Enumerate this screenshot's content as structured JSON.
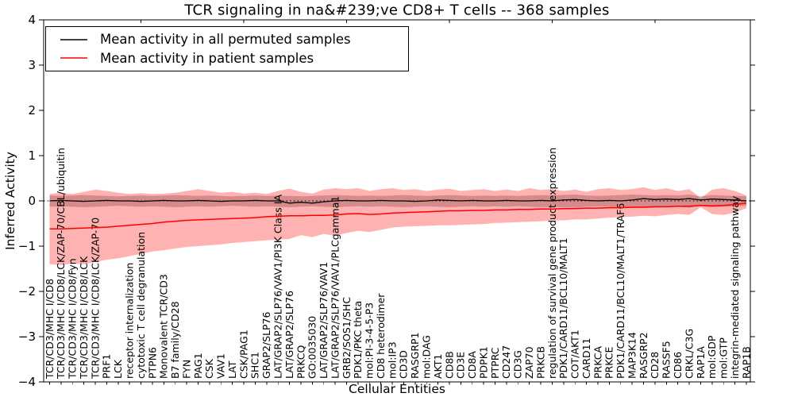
{
  "title": "TCR signaling in na&#239;ve CD8+ T cells -- 368 samples",
  "legend": {
    "items": [
      {
        "label": "Mean activity in all permuted samples",
        "color": "#000000"
      },
      {
        "label": "Mean activity in patient samples",
        "color": "#ff0000"
      }
    ]
  },
  "chart_data": {
    "type": "line",
    "title": "TCR signaling in na&#239;ve CD8+ T cells -- 368 samples",
    "xlabel": "Cellular Entities",
    "ylabel": "Inferred Activity",
    "ylim": [
      -4,
      4
    ],
    "yticks": [
      -4,
      -3,
      -2,
      -1,
      0,
      1,
      2,
      3,
      4
    ],
    "ytick_labels": [
      "−4",
      "−3",
      "−2",
      "−1",
      "0",
      "1",
      "2",
      "3",
      "4"
    ],
    "grid": false,
    "legend_position": "upper left",
    "band_opacity": {
      "patient": 0.3,
      "permuted": 0.45
    },
    "band_colors": {
      "patient": "#ff0000",
      "permuted": "#808080"
    },
    "categories": [
      "TCR/CD3/MHC I/CD8",
      "TCR/CD3/MHC I/CD8/LCK/ZAP-70/CBL/ubiquitin",
      "TCR/CD3/MHC I/CD8/Fyn",
      "TCR/CD3/MHC I/CD8/LCK",
      "TCR/CD3/MHC I/CD8/LCK/ZAP-70",
      "PRF1",
      "LCK",
      "receptor internalization",
      "cytotoxic T cell degranulation",
      "PTPN6",
      "Monovalent TCR/CD3",
      "B7 family/CD28",
      "FYN",
      "PAG1",
      "CSK",
      "VAV1",
      "LAT",
      "CSK/PAG1",
      "SHC1",
      "GRAP2/SLP76",
      "LAT/GRAP2/SLP76/VAV1/PI3K Class IA",
      "LAT/GRAP2/SLP76",
      "PRKCQ",
      "GO:0035030",
      "LAT/GRAP2/SLP76/VAV1",
      "LAT/GRAP2/SLP76/VAV1/PLCgamma1",
      "GRB2/SOS1/SHC",
      "PDK1/PKC theta",
      "mol:PI-3-4-5-P3",
      "CD8 heterodimer",
      "mol:IP3",
      "CD3D",
      "RASGRP1",
      "mol:DAG",
      "AKT1",
      "CD8B",
      "CD3E",
      "CD8A",
      "PDPK1",
      "PTPRC",
      "CD247",
      "CD3G",
      "ZAP70",
      "PRKCB",
      "regulation of survival gene product expression",
      "PDK1/CARD11/BCL10/MALT1",
      "COT/AKT1",
      "CARD11",
      "PRKCA",
      "PRKCE",
      "PDK1/CARD11/BCL10/MALT1/TRAF6",
      "MAP3K14",
      "RASGRP2",
      "CD28",
      "RASSF5",
      "CD86",
      "CRKL/C3G",
      "RAP1A",
      "mol:GDP",
      "mol:GTP",
      "integrin-mediated signaling pathway",
      "RAP1B"
    ],
    "series": [
      {
        "name": "Mean activity in all permuted samples",
        "color": "#000000",
        "values": [
          0.0,
          0.01,
          0.0,
          -0.01,
          0.0,
          0.01,
          0.0,
          0.0,
          -0.01,
          0.0,
          0.01,
          0.0,
          0.0,
          0.01,
          0.0,
          -0.01,
          0.0,
          0.0,
          0.01,
          0.0,
          0.0,
          -0.05,
          -0.03,
          -0.05,
          -0.02,
          0.0,
          0.01,
          0.0,
          0.0,
          0.01,
          0.0,
          0.0,
          -0.01,
          0.0,
          0.02,
          0.01,
          0.0,
          0.01,
          0.0,
          0.0,
          0.01,
          0.0,
          0.0,
          0.01,
          0.0,
          0.02,
          0.03,
          0.01,
          0.0,
          0.01,
          0.0,
          0.02,
          0.05,
          0.03,
          0.04,
          0.03,
          0.05,
          0.02,
          0.04,
          0.03,
          0.02,
          0.0
        ],
        "band_upper": [
          0.12,
          0.11,
          0.12,
          0.13,
          0.12,
          0.11,
          0.1,
          0.11,
          0.12,
          0.11,
          0.12,
          0.13,
          0.12,
          0.11,
          0.12,
          0.11,
          0.1,
          0.11,
          0.12,
          0.11,
          0.12,
          0.11,
          0.1,
          0.11,
          0.12,
          0.13,
          0.12,
          0.11,
          0.12,
          0.11,
          0.12,
          0.13,
          0.12,
          0.11,
          0.12,
          0.13,
          0.12,
          0.11,
          0.12,
          0.11,
          0.12,
          0.11,
          0.12,
          0.13,
          0.12,
          0.13,
          0.14,
          0.12,
          0.11,
          0.12,
          0.13,
          0.14,
          0.13,
          0.12,
          0.13,
          0.12,
          0.14,
          0.1,
          0.13,
          0.12,
          0.11,
          0.1
        ],
        "band_lower": [
          -0.13,
          -0.12,
          -0.13,
          -0.14,
          -0.13,
          -0.12,
          -0.11,
          -0.12,
          -0.13,
          -0.12,
          -0.13,
          -0.14,
          -0.13,
          -0.12,
          -0.13,
          -0.12,
          -0.11,
          -0.12,
          -0.13,
          -0.12,
          -0.13,
          -0.14,
          -0.13,
          -0.12,
          -0.13,
          -0.14,
          -0.13,
          -0.12,
          -0.13,
          -0.12,
          -0.13,
          -0.14,
          -0.13,
          -0.12,
          -0.13,
          -0.14,
          -0.13,
          -0.12,
          -0.13,
          -0.12,
          -0.13,
          -0.12,
          -0.13,
          -0.14,
          -0.13,
          -0.14,
          -0.15,
          -0.13,
          -0.12,
          -0.13,
          -0.14,
          -0.15,
          -0.14,
          -0.13,
          -0.14,
          -0.13,
          -0.15,
          -0.11,
          -0.14,
          -0.13,
          -0.12,
          -0.11
        ]
      },
      {
        "name": "Mean activity in patient samples",
        "color": "#ff0000",
        "values": [
          -0.62,
          -0.62,
          -0.61,
          -0.6,
          -0.59,
          -0.58,
          -0.56,
          -0.54,
          -0.52,
          -0.5,
          -0.47,
          -0.45,
          -0.43,
          -0.42,
          -0.41,
          -0.4,
          -0.39,
          -0.38,
          -0.37,
          -0.35,
          -0.34,
          -0.33,
          -0.33,
          -0.32,
          -0.32,
          -0.31,
          -0.29,
          -0.28,
          -0.3,
          -0.29,
          -0.27,
          -0.26,
          -0.25,
          -0.24,
          -0.23,
          -0.22,
          -0.22,
          -0.21,
          -0.21,
          -0.2,
          -0.2,
          -0.19,
          -0.19,
          -0.18,
          -0.18,
          -0.17,
          -0.17,
          -0.16,
          -0.16,
          -0.15,
          -0.15,
          -0.14,
          -0.14,
          -0.13,
          -0.13,
          -0.12,
          -0.12,
          -0.1,
          -0.11,
          -0.1,
          -0.08,
          -0.05
        ],
        "band_upper": [
          0.15,
          0.18,
          0.15,
          0.2,
          0.25,
          0.22,
          0.18,
          0.15,
          0.17,
          0.15,
          0.16,
          0.18,
          0.22,
          0.26,
          0.22,
          0.18,
          0.2,
          0.16,
          0.18,
          0.15,
          0.22,
          0.27,
          0.2,
          0.16,
          0.25,
          0.28,
          0.26,
          0.28,
          0.22,
          0.26,
          0.28,
          0.24,
          0.26,
          0.22,
          0.25,
          0.27,
          0.22,
          0.24,
          0.26,
          0.22,
          0.25,
          0.22,
          0.28,
          0.24,
          0.26,
          0.22,
          0.25,
          0.2,
          0.26,
          0.28,
          0.24,
          0.26,
          0.3,
          0.24,
          0.28,
          0.22,
          0.26,
          0.06,
          0.25,
          0.28,
          0.22,
          0.12
        ],
        "band_lower": [
          -1.4,
          -1.42,
          -1.38,
          -1.4,
          -1.35,
          -1.3,
          -1.27,
          -1.22,
          -1.17,
          -1.12,
          -1.09,
          -1.05,
          -1.02,
          -1.0,
          -0.98,
          -0.96,
          -0.93,
          -0.91,
          -0.89,
          -0.87,
          -0.86,
          -0.84,
          -0.76,
          -0.8,
          -0.73,
          -0.77,
          -0.71,
          -0.66,
          -0.69,
          -0.64,
          -0.59,
          -0.57,
          -0.56,
          -0.55,
          -0.54,
          -0.54,
          -0.53,
          -0.52,
          -0.51,
          -0.49,
          -0.48,
          -0.47,
          -0.46,
          -0.45,
          -0.43,
          -0.43,
          -0.41,
          -0.41,
          -0.39,
          -0.37,
          -0.36,
          -0.35,
          -0.33,
          -0.34,
          -0.31,
          -0.29,
          -0.31,
          -0.14,
          -0.29,
          -0.31,
          -0.26,
          -0.16
        ]
      }
    ]
  }
}
